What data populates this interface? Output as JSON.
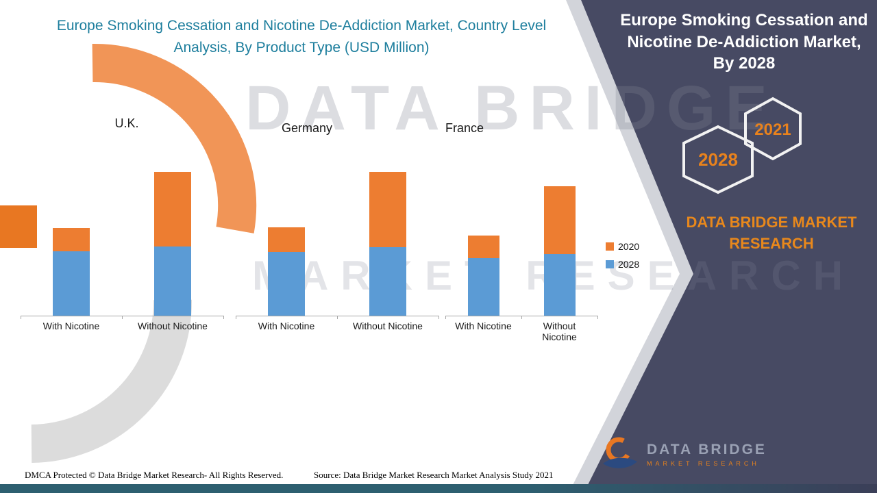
{
  "colors": {
    "title_teal": "#1d7e9d",
    "panel_bg": "#474a63",
    "accent_orange": "#e8821d",
    "bar_blue": "#5b9bd5",
    "bar_orange": "#ed7d31",
    "axis_grey": "#a6a6a6"
  },
  "chart_data": {
    "type": "bar",
    "stacked": true,
    "title": "Europe Smoking Cessation and Nicotine De-Addiction Market, Country Level Analysis, By Product Type (USD Million)",
    "value_unit": "USD Million",
    "axis_value_labels_shown": false,
    "values_note": "no numeric axis shown; stacked segment sizes estimated in relative units read from bar heights",
    "groups": [
      "U.K.",
      "Germany",
      "France"
    ],
    "categories": [
      "With Nicotine",
      "Without Nicotine"
    ],
    "series": [
      {
        "name": "2020",
        "color": "#ed7d31",
        "values": [
          [
            34,
            109
          ],
          [
            36,
            110
          ],
          [
            33,
            99
          ]
        ]
      },
      {
        "name": "2028",
        "color": "#5b9bd5",
        "values": [
          [
            94,
            101
          ],
          [
            93,
            100
          ],
          [
            84,
            90
          ]
        ]
      }
    ],
    "legend": [
      "2020",
      "2028"
    ],
    "legend_position": "right-middle",
    "grid": false
  },
  "side_panel": {
    "title": "Europe Smoking Cessation and Nicotine De-Addiction Market, By 2028",
    "hexagon_left": "2028",
    "hexagon_right": "2021",
    "brand": "DATA BRIDGE MARKET RESEARCH"
  },
  "watermark": {
    "line1": "DATA BRIDGE",
    "line2": "MARKET RESEARCH"
  },
  "logo": {
    "name": "DATA BRIDGE",
    "tagline": "MARKET RESEARCH"
  },
  "footer": {
    "dmca": "DMCA Protected © Data Bridge Market Research- All Rights Reserved.",
    "source": "Source: Data Bridge Market Research Market Analysis Study 2021"
  }
}
